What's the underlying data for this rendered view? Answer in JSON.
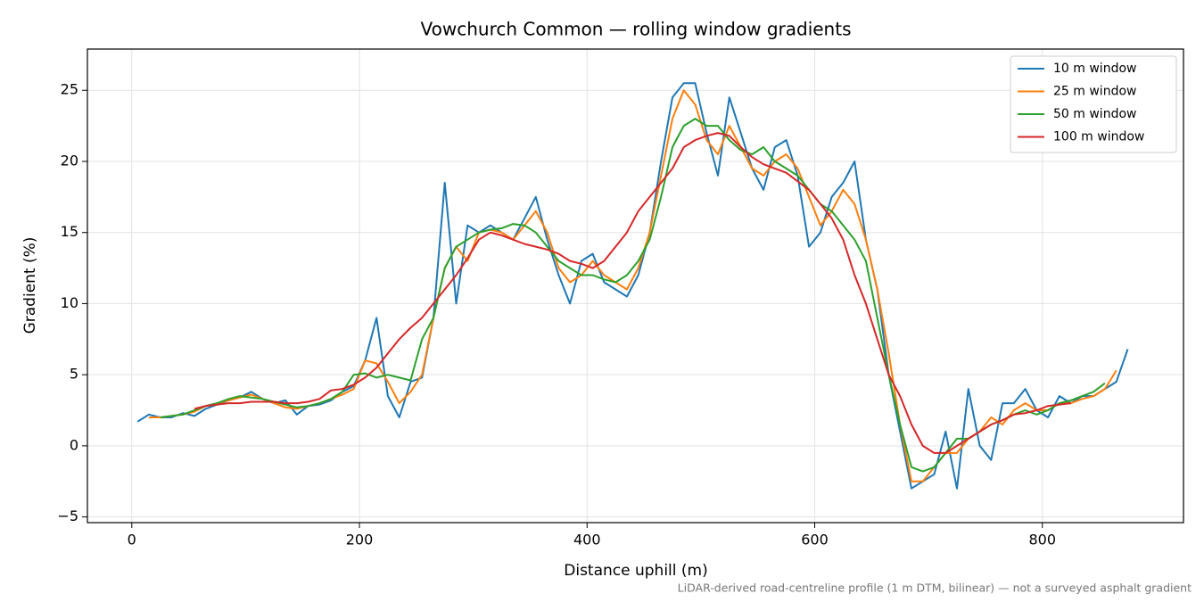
{
  "chart_data": {
    "type": "line",
    "title": "Vowchurch Common — rolling window gradients",
    "x_label": "Distance uphill (m)",
    "y_label": "Gradient (%)",
    "note": "LiDAR-derived road-centreline profile (1 m DTM, bilinear) — not a surveyed asphalt gradient",
    "x": [
      5,
      15,
      25,
      35,
      45,
      55,
      65,
      75,
      85,
      95,
      105,
      115,
      125,
      135,
      145,
      155,
      165,
      175,
      185,
      195,
      205,
      215,
      225,
      235,
      245,
      255,
      265,
      275,
      285,
      295,
      305,
      315,
      325,
      335,
      345,
      355,
      365,
      375,
      385,
      395,
      405,
      415,
      425,
      435,
      445,
      455,
      465,
      475,
      485,
      495,
      505,
      515,
      525,
      535,
      545,
      555,
      565,
      575,
      585,
      595,
      605,
      615,
      625,
      635,
      645,
      655,
      665,
      675,
      685,
      695,
      705,
      715,
      725,
      735,
      745,
      755,
      765,
      775,
      785,
      795,
      805,
      815,
      825,
      835,
      845,
      855,
      865,
      875
    ],
    "series": [
      {
        "name": "10 m window",
        "color": "#1f77b4",
        "values": [
          1.7,
          2.2,
          2.0,
          2.0,
          2.3,
          2.1,
          2.6,
          2.9,
          3.2,
          3.4,
          3.8,
          3.3,
          3.0,
          3.2,
          2.2,
          2.8,
          2.9,
          3.2,
          3.8,
          4.2,
          6.0,
          9.0,
          3.5,
          2.0,
          4.5,
          4.8,
          9,
          18.5,
          10,
          15.5,
          15,
          15.5,
          15,
          14.5,
          16,
          17.5,
          14.5,
          12,
          10,
          13,
          13.5,
          11.5,
          11,
          10.5,
          12,
          15,
          20,
          24.5,
          25.5,
          25.5,
          22,
          19,
          24.5,
          22,
          19.5,
          18,
          21,
          21.5,
          19,
          14,
          15,
          17.5,
          18.5,
          20,
          14.5,
          11,
          5,
          1,
          -3,
          -2.5,
          -2,
          1,
          -3,
          4,
          0,
          -1,
          3,
          3,
          4,
          2.5,
          2,
          3.5,
          3,
          3.5,
          3.5,
          4,
          4.5,
          6.8
        ]
      },
      {
        "name": "25 m window",
        "color": "#ff7f0e",
        "values": [
          null,
          2.0,
          2.0,
          2.1,
          2.2,
          2.4,
          2.8,
          3.0,
          3.2,
          3.4,
          3.6,
          3.3,
          3.0,
          2.7,
          2.6,
          2.8,
          3.0,
          3.3,
          3.6,
          4.0,
          6.0,
          5.8,
          4.5,
          3.0,
          3.8,
          5.0,
          9,
          12.5,
          14,
          13,
          15,
          15.2,
          15,
          14.5,
          15.5,
          16.5,
          15,
          12.5,
          11.5,
          12,
          13,
          12,
          11.5,
          11,
          12.5,
          15,
          19,
          23,
          25,
          24,
          21.5,
          20.5,
          22.5,
          21,
          19.5,
          19,
          20,
          20.5,
          19.5,
          17.5,
          15.5,
          16.5,
          18,
          17,
          14.5,
          11,
          6.5,
          1.5,
          -2.5,
          -2.5,
          -1.5,
          -0.5,
          -0.5,
          0.5,
          1,
          2,
          1.5,
          2.5,
          3,
          2.5,
          2.5,
          3,
          3,
          3.3,
          3.5,
          4,
          5.3,
          null
        ]
      },
      {
        "name": "50 m window",
        "color": "#2ca02c",
        "values": [
          null,
          null,
          2.0,
          2.1,
          2.2,
          2.5,
          2.8,
          3.0,
          3.3,
          3.5,
          3.4,
          3.3,
          3.1,
          2.9,
          2.7,
          2.8,
          3.0,
          3.3,
          3.8,
          5.0,
          5.1,
          4.8,
          5.0,
          4.8,
          4.6,
          7.5,
          9,
          12.5,
          14,
          14.5,
          15,
          15.2,
          15.3,
          15.6,
          15.5,
          15,
          14,
          13,
          12.5,
          12,
          12,
          11.7,
          11.5,
          12,
          13,
          14.5,
          17.5,
          21,
          22.5,
          23,
          22.5,
          22.5,
          21.5,
          20.8,
          20.5,
          21,
          20,
          19.5,
          19,
          18,
          17,
          16.5,
          15.5,
          14.5,
          13,
          9,
          5,
          1.5,
          -1.5,
          -1.8,
          -1.5,
          -0.5,
          0.5,
          0.5,
          1,
          1.5,
          1.8,
          2.2,
          2.5,
          2.2,
          2.5,
          3,
          3.2,
          3.5,
          3.8,
          4.4,
          null,
          null
        ]
      },
      {
        "name": "100 m window",
        "color": "#d62728",
        "values": [
          null,
          null,
          null,
          null,
          null,
          2.6,
          2.8,
          2.9,
          3.0,
          3.0,
          3.1,
          3.1,
          3.1,
          3.0,
          3.0,
          3.1,
          3.3,
          3.9,
          4.0,
          4.3,
          4.8,
          5.5,
          6.5,
          7.5,
          8.3,
          9.0,
          10,
          11,
          12,
          13.2,
          14.5,
          15,
          14.8,
          14.5,
          14.2,
          14,
          13.8,
          13.5,
          13,
          12.8,
          12.5,
          13,
          14,
          15,
          16.5,
          17.5,
          18.5,
          19.5,
          21,
          21.5,
          21.8,
          22,
          21.8,
          21,
          20.3,
          19.8,
          19.5,
          19.2,
          18.6,
          18,
          17,
          16,
          14.5,
          12,
          10,
          7.5,
          5,
          3.5,
          1.5,
          0,
          -0.5,
          -0.5,
          0,
          0.5,
          1,
          1.5,
          1.8,
          2.2,
          2.3,
          2.5,
          2.8,
          2.9,
          3.0,
          null,
          null,
          null,
          null,
          null
        ]
      }
    ],
    "xlim": [
      -39,
      924
    ],
    "ylim": [
      -5.4,
      27.9
    ],
    "xticks": [
      0,
      200,
      400,
      600,
      800
    ],
    "yticks": [
      {
        "value": -5,
        "label": "−5"
      },
      0,
      5,
      10,
      15,
      20,
      25
    ],
    "grid": true,
    "legend": "upper right"
  }
}
